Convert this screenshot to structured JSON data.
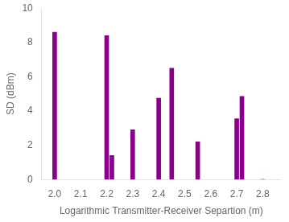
{
  "chart_data": {
    "type": "bar",
    "x": [
      2.0,
      2.2,
      2.22,
      2.3,
      2.4,
      2.45,
      2.55,
      2.7,
      2.72,
      2.8
    ],
    "values": [
      8.6,
      8.4,
      1.4,
      2.9,
      4.75,
      6.5,
      2.2,
      3.55,
      4.85,
      0.0
    ],
    "color": "#8B008B",
    "xlabel": "Logarithmic Transmitter-Receiver Separtion (m)",
    "ylabel": "SD (dBm)",
    "xlim": [
      1.95,
      2.87
    ],
    "ylim": [
      0,
      10
    ],
    "xticks": [
      {
        "value": 2.0,
        "label": "2.0"
      },
      2.1,
      2.2,
      2.3,
      2.4,
      2.5,
      2.6,
      2.7,
      2.8
    ],
    "yticks": [
      0,
      2,
      4,
      6,
      8,
      10
    ],
    "grid": false
  }
}
